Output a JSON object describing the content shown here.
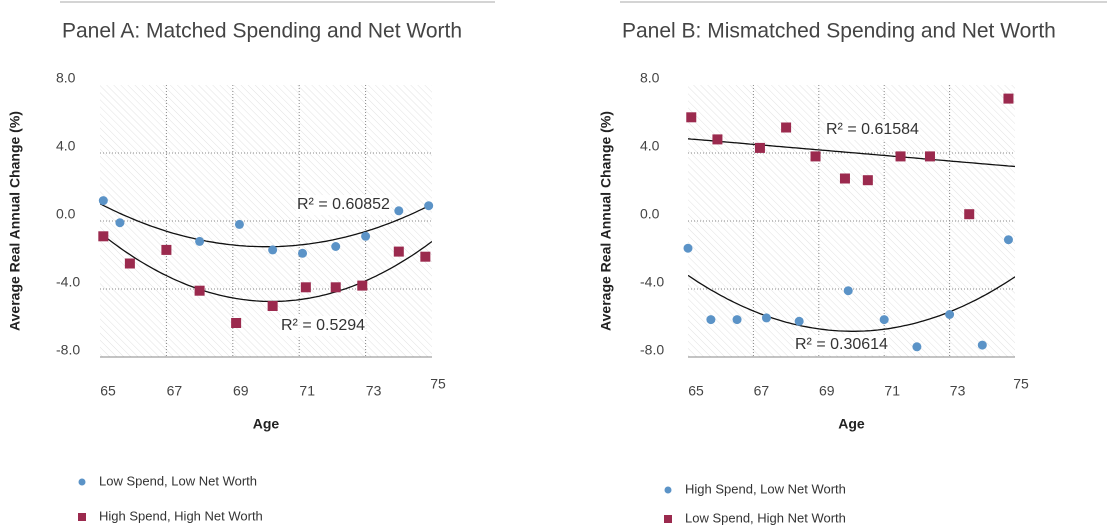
{
  "chart_data": [
    {
      "type": "scatter",
      "title": "Panel A: Matched Spending and Net Worth",
      "x_label": "Age",
      "y_label": "Average Real Annual Change (%)",
      "xlim": [
        65,
        75
      ],
      "xticks": [
        65,
        67,
        69,
        71,
        73,
        75
      ],
      "ylim": [
        -8,
        8
      ],
      "yticks": [
        {
          "value": -8,
          "label": "-8.0"
        },
        {
          "value": -4,
          "label": "-4.0"
        },
        {
          "value": 0,
          "label": "0.0"
        },
        {
          "value": 4,
          "label": "4.0"
        },
        {
          "value": 8,
          "label": "8.0"
        }
      ],
      "grid": true,
      "series": [
        {
          "name": "Low Spend, Low Net Worth",
          "color": "#5b93c7",
          "marker": "circle",
          "trend": "poly2",
          "x": [
            65.1,
            65.6,
            68.0,
            69.2,
            70.2,
            71.1,
            72.1,
            73.0,
            74.0,
            74.9
          ],
          "values": [
            1.2,
            -0.1,
            -1.2,
            -0.2,
            -1.7,
            -1.9,
            -1.5,
            -0.9,
            0.6,
            0.9
          ]
        },
        {
          "name": "High Spend, High Net Worth",
          "color": "#9b2a4e",
          "marker": "square",
          "trend": "poly2",
          "x": [
            65.1,
            65.9,
            67.0,
            68.0,
            69.1,
            70.2,
            71.2,
            72.1,
            72.9,
            74.0,
            74.8
          ],
          "values": [
            -0.9,
            -2.5,
            -1.7,
            -4.1,
            -6.0,
            -5.0,
            -3.9,
            -3.9,
            -3.8,
            -1.8,
            -2.1
          ]
        }
      ],
      "annotations": [
        "R² = 0.60852",
        "R² = 0.5294"
      ]
    },
    {
      "type": "scatter",
      "title": "Panel B: Mismatched Spending and Net Worth",
      "x_label": "Age",
      "y_label": "Average Real Annual Change (%)",
      "xlim": [
        65,
        75
      ],
      "xticks": [
        65,
        67,
        69,
        71,
        73,
        75
      ],
      "ylim": [
        -8,
        8
      ],
      "yticks": [
        {
          "value": -8,
          "label": "-8.0"
        },
        {
          "value": -4,
          "label": "-4.0"
        },
        {
          "value": 0,
          "label": "0.0"
        },
        {
          "value": 4,
          "label": "4.0"
        },
        {
          "value": 8,
          "label": "8.0"
        }
      ],
      "grid": true,
      "series": [
        {
          "name": "High Spend, Low Net Worth",
          "color": "#5b93c7",
          "marker": "circle",
          "trend": "poly2",
          "x": [
            65.0,
            65.7,
            66.5,
            67.4,
            68.4,
            69.9,
            71.0,
            72.0,
            73.0,
            74.0,
            74.8
          ],
          "values": [
            -1.6,
            -5.8,
            -5.8,
            -5.7,
            -5.9,
            -4.1,
            -5.8,
            -7.4,
            -5.5,
            -7.3,
            -1.1
          ]
        },
        {
          "name": "Low Spend, High Net Worth",
          "color": "#9b2a4e",
          "marker": "square",
          "trend": "linear",
          "x": [
            65.1,
            65.9,
            67.2,
            68.0,
            68.9,
            69.8,
            70.5,
            71.5,
            72.4,
            73.6,
            74.8
          ],
          "values": [
            6.1,
            4.8,
            4.3,
            5.5,
            3.8,
            2.5,
            2.4,
            3.8,
            3.8,
            0.4,
            7.2
          ]
        }
      ],
      "annotations": [
        "R² = 0.61584",
        "R² = 0.30614"
      ]
    }
  ]
}
